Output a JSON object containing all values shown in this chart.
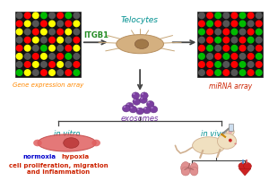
{
  "bg_color": "#ffffff",
  "gene_array_label": "Gene expression array",
  "mirna_array_label": "miRNA array",
  "telocytes_label": "Telocytes",
  "itgb1_label": "ITGB1",
  "exosomes_label": "exosomes",
  "in_vitro_label": "in vitro",
  "in_vivo_label": "in vivo",
  "normoxia_label": "normoxia",
  "hypoxia_label": "hypoxia",
  "bottom_label": "cell proliferation, migration\nand inflammation",
  "gene_array_label_color": "#ff8800",
  "mirna_array_label_color": "#cc2200",
  "telocytes_label_color": "#009090",
  "itgb1_label_color": "#228b22",
  "exosomes_label_color": "#7030a0",
  "in_vitro_label_color": "#009090",
  "in_vivo_label_color": "#009090",
  "normoxia_label_color": "#0000cc",
  "hypoxia_label_color": "#cc2200",
  "bottom_label_color": "#cc2200",
  "arrow_color": "#444444",
  "array_colors_left": [
    [
      "#555555",
      "#ff0000",
      "#ffff00",
      "#00bb00",
      "#555555",
      "#ff0000",
      "#00bb00",
      "#555555"
    ],
    [
      "#ff0000",
      "#ffff00",
      "#555555",
      "#ff0000",
      "#ffff00",
      "#555555",
      "#ff0000",
      "#ffff00"
    ],
    [
      "#ffff00",
      "#555555",
      "#ff0000",
      "#ffff00",
      "#555555",
      "#ff0000",
      "#ffff00",
      "#555555"
    ],
    [
      "#555555",
      "#ff0000",
      "#ffff00",
      "#555555",
      "#ff0000",
      "#ffff00",
      "#555555",
      "#ff0000"
    ],
    [
      "#ff0000",
      "#ffff00",
      "#555555",
      "#00bb00",
      "#ffff00",
      "#555555",
      "#ff0000",
      "#ffff00"
    ],
    [
      "#ffff00",
      "#555555",
      "#ff0000",
      "#ffff00",
      "#555555",
      "#ff0000",
      "#00bb00",
      "#555555"
    ],
    [
      "#555555",
      "#ff0000",
      "#ffff00",
      "#555555",
      "#ff0000",
      "#ffff00",
      "#555555",
      "#ff0000"
    ],
    [
      "#00bb00",
      "#ffff00",
      "#555555",
      "#ff0000",
      "#ffff00",
      "#555555",
      "#ff0000",
      "#00bb00"
    ]
  ],
  "array_colors_right": [
    [
      "#555555",
      "#ff0000",
      "#00bb00",
      "#555555",
      "#ff0000",
      "#00bb00",
      "#ff0000",
      "#555555"
    ],
    [
      "#ff0000",
      "#00bb00",
      "#ff0000",
      "#555555",
      "#ff0000",
      "#00bb00",
      "#555555",
      "#ff0000"
    ],
    [
      "#00bb00",
      "#ff0000",
      "#555555",
      "#ff0000",
      "#00bb00",
      "#555555",
      "#ff0000",
      "#00bb00"
    ],
    [
      "#555555",
      "#ff0000",
      "#00bb00",
      "#ff0000",
      "#555555",
      "#ff0000",
      "#00bb00",
      "#555555"
    ],
    [
      "#ff0000",
      "#00bb00",
      "#555555",
      "#ff0000",
      "#00bb00",
      "#ff0000",
      "#555555",
      "#ff0000"
    ],
    [
      "#00bb00",
      "#555555",
      "#ff0000",
      "#00bb00",
      "#ff0000",
      "#555555",
      "#ff0000",
      "#00bb00"
    ],
    [
      "#ff0000",
      "#ff0000",
      "#00bb00",
      "#555555",
      "#ff0000",
      "#00bb00",
      "#555555",
      "#ff0000"
    ],
    [
      "#555555",
      "#ff0000",
      "#00bb00",
      "#ff0000",
      "#555555",
      "#00bb00",
      "#ff0000",
      "#00bb00"
    ]
  ]
}
